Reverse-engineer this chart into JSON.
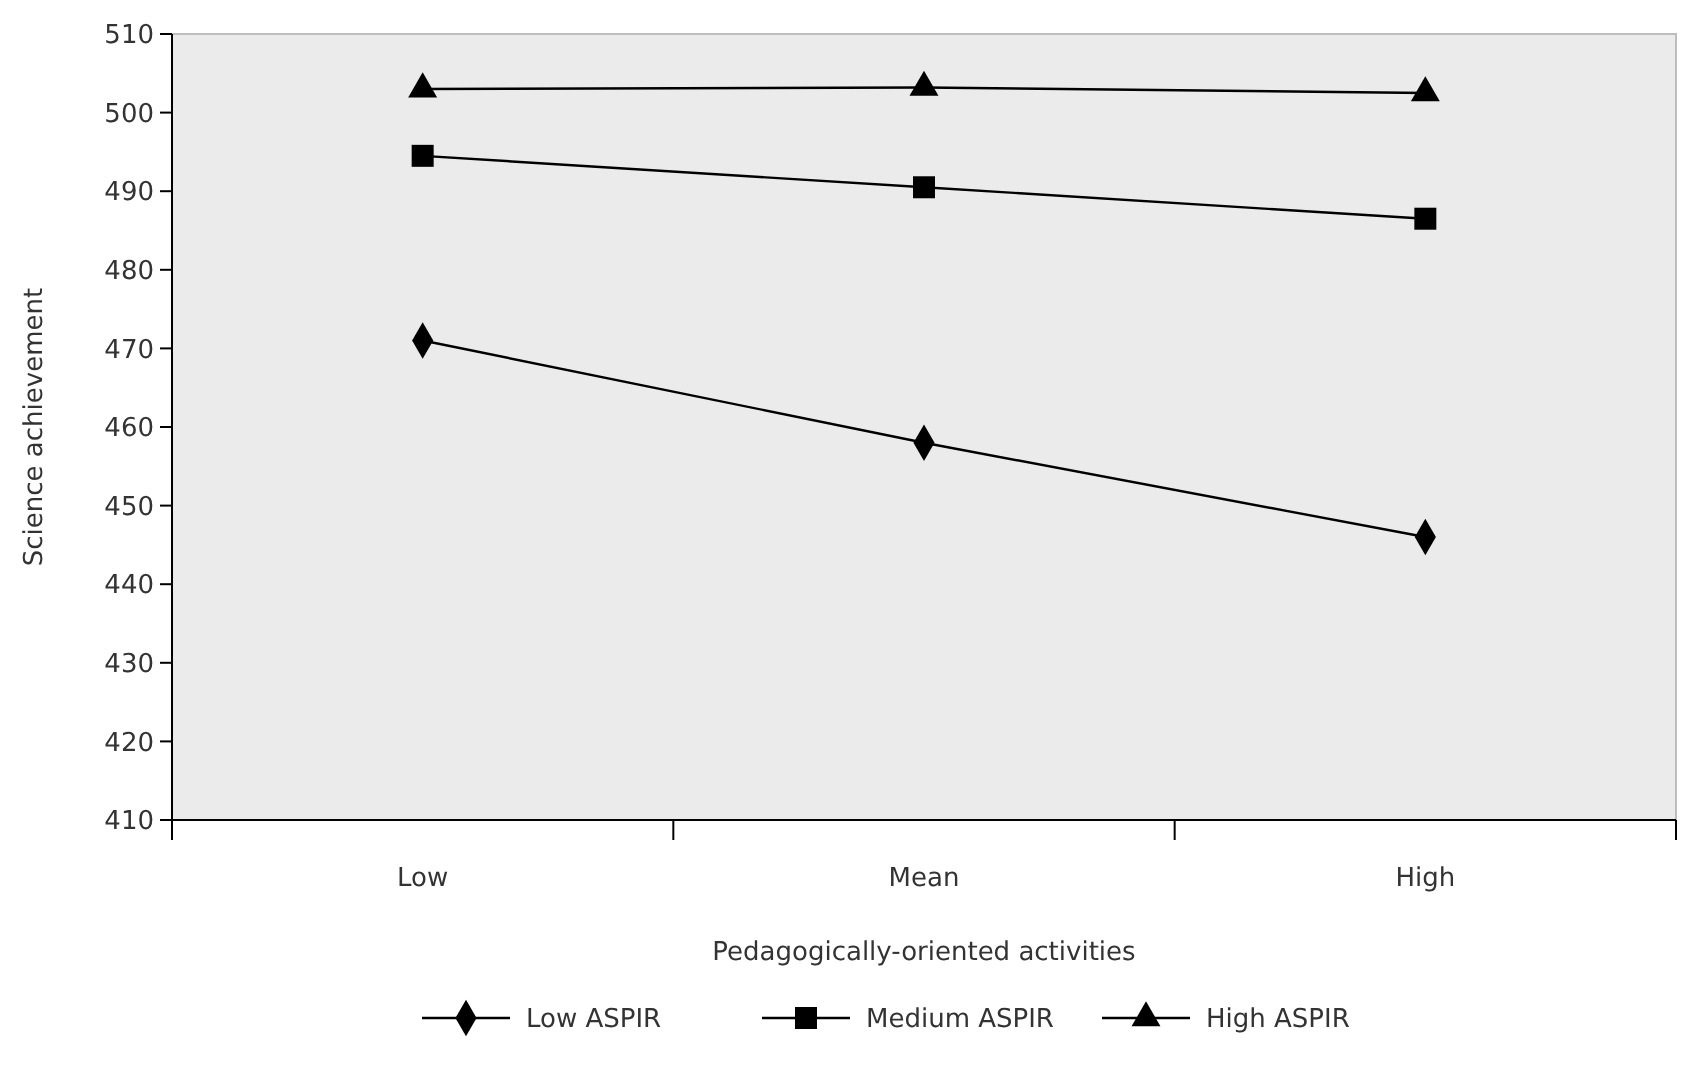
{
  "chart_data": {
    "type": "line",
    "xlabel": "Pedagogically-oriented activities",
    "ylabel": "Science achievement",
    "categories": [
      "Low",
      "Mean",
      "High"
    ],
    "ylim": [
      410,
      510
    ],
    "yticks": [
      410,
      420,
      430,
      440,
      450,
      460,
      470,
      480,
      490,
      500,
      510
    ],
    "grid": false,
    "legend": "bottom",
    "line_style": "solid",
    "series": [
      {
        "name": "Low ASPIR",
        "color": "#000000",
        "marker": "diamond",
        "values": [
          471,
          458,
          446
        ]
      },
      {
        "name": "Medium ASPIR",
        "color": "#000000",
        "marker": "square",
        "values": [
          494.5,
          490.5,
          486.5
        ]
      },
      {
        "name": "High ASPIR",
        "color": "#000000",
        "marker": "triangle",
        "values": [
          503,
          503.2,
          502.5
        ]
      }
    ]
  }
}
